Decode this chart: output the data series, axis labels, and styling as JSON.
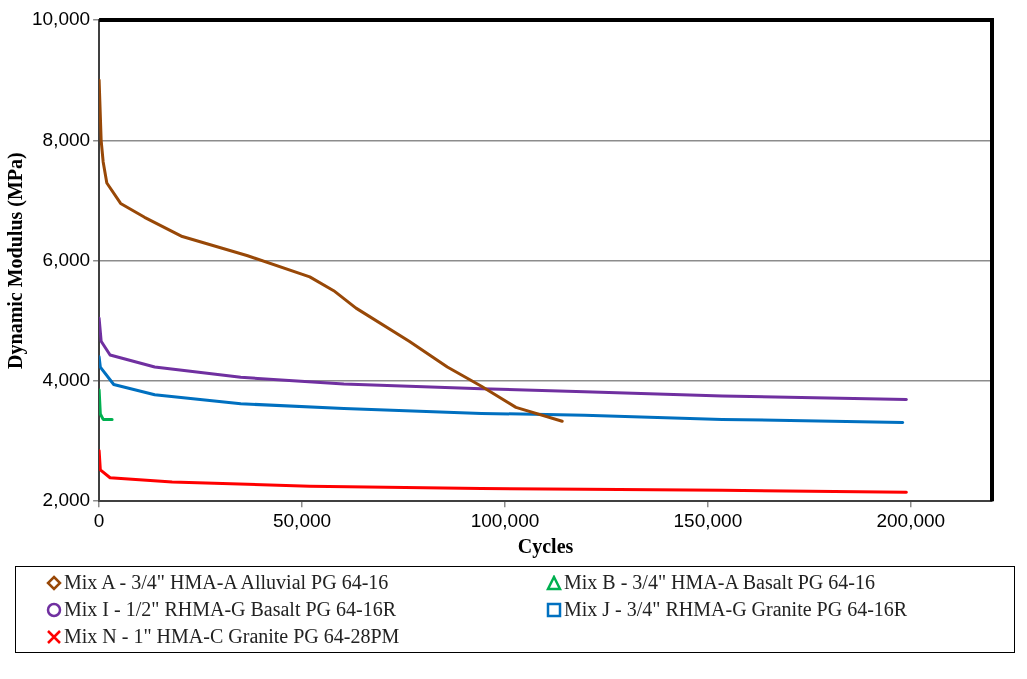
{
  "chart_data": {
    "type": "line",
    "xlabel": "Cycles",
    "ylabel": "Dynamic Modulus (MPa)",
    "xlim": [
      0,
      220000
    ],
    "ylim": [
      2000,
      10000
    ],
    "xticks": [
      {
        "value": 0,
        "label": "0"
      },
      {
        "value": 50000,
        "label": "50,000"
      },
      {
        "value": 100000,
        "label": "100,000"
      },
      {
        "value": 150000,
        "label": "150,000"
      },
      {
        "value": 200000,
        "label": "200,000"
      }
    ],
    "yticks": [
      {
        "value": 2000,
        "label": "2,000"
      },
      {
        "value": 4000,
        "label": "4,000"
      },
      {
        "value": 6000,
        "label": "6,000"
      },
      {
        "value": 8000,
        "label": "8,000"
      },
      {
        "value": 10000,
        "label": "10,000"
      }
    ],
    "grid": "y",
    "legend": "bottom",
    "line_style": "solid",
    "series": [
      {
        "name": "Mix A - 3/4\" HMA-A Alluvial PG 64-16",
        "color": "#984807",
        "x": [
          0,
          500,
          1000,
          1900,
          5300,
          11200,
          20500,
          36600,
          51900,
          57800,
          63300,
          76400,
          85800,
          94200,
          102700,
          114100
        ],
        "values": [
          9000,
          8000,
          7640,
          7290,
          6950,
          6720,
          6400,
          6080,
          5730,
          5500,
          5210,
          4660,
          4230,
          3910,
          3560,
          3330
        ]
      },
      {
        "name": "Mix B - 3/4\" HMA-A Basalt PG 64-16",
        "color": "#00b050",
        "x": [
          0,
          300,
          1000,
          3200
        ],
        "values": [
          3850,
          3450,
          3360,
          3360
        ]
      },
      {
        "name": "Mix I - 1/2\" RHMA-G Basalt PG 64-16R",
        "color": "#7030a0",
        "x": [
          0,
          500,
          2700,
          13700,
          34900,
          60300,
          94200,
          119600,
          153500,
          198900
        ],
        "values": [
          5040,
          4660,
          4430,
          4230,
          4060,
          3950,
          3870,
          3820,
          3750,
          3690
        ]
      },
      {
        "name": "Mix J - 3/4\" RHMA-G Granite PG 64-16R",
        "color": "#0070c0",
        "x": [
          0,
          300,
          3600,
          13700,
          34900,
          60300,
          94200,
          119600,
          153500,
          198000
        ],
        "values": [
          4400,
          4230,
          3940,
          3770,
          3620,
          3540,
          3460,
          3430,
          3360,
          3310
        ]
      },
      {
        "name": "Mix N - 1\" HMA-C Granite PG 64-28PM",
        "color": "#ff0000",
        "x": [
          0,
          300,
          2700,
          18000,
          51900,
          94200,
          119600,
          153500,
          198900
        ],
        "values": [
          2840,
          2520,
          2390,
          2320,
          2250,
          2210,
          2200,
          2180,
          2150
        ]
      }
    ]
  }
}
